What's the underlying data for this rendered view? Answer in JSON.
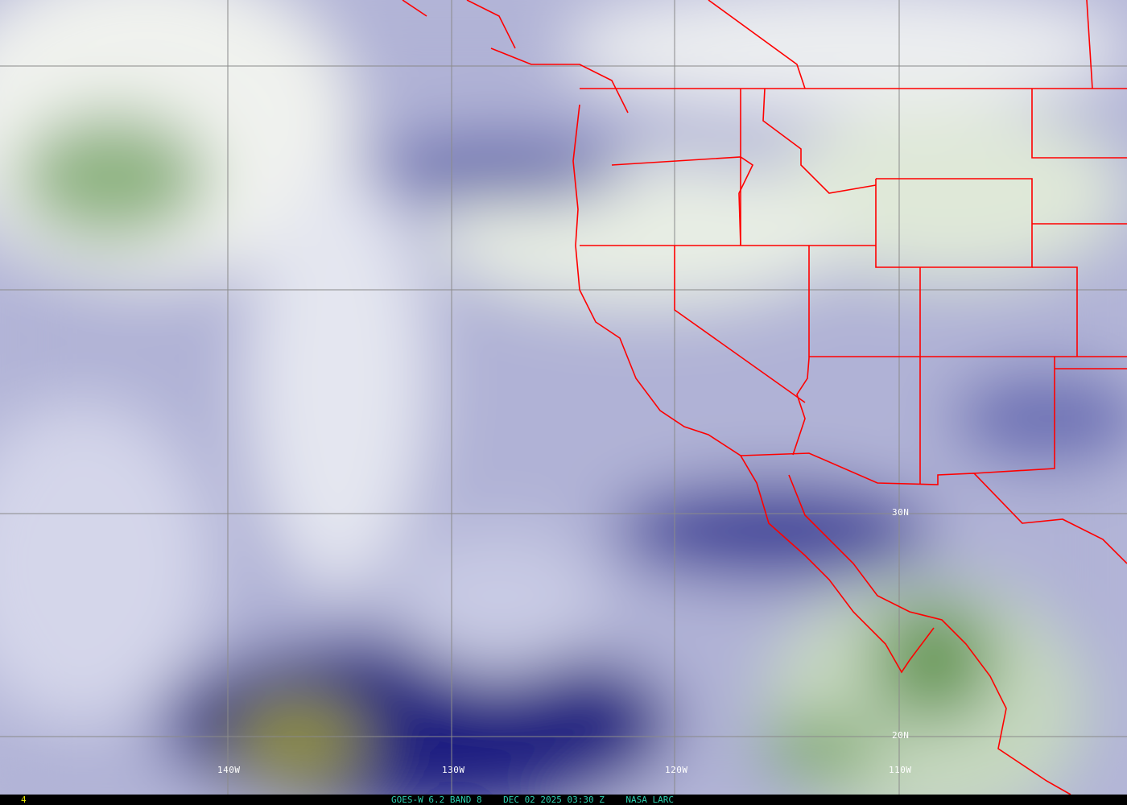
{
  "image": {
    "satellite": "GOES-W",
    "product": "6.2 BAND 8",
    "caption": "GOES-W 6.2 BAND 8    DEC 02 2025 03:30 Z    NASA LARC",
    "frame_number": "4",
    "longitude_labels": [
      "140W",
      "130W",
      "120W",
      "110W"
    ],
    "latitude_labels": [
      "30N",
      "20N"
    ],
    "colors": {
      "dry": "#1a1a78",
      "moderate": "#a8aad4",
      "moist": "#f4f6f4",
      "very_moist": "#4a8a3a",
      "very_dry": "#9a9a3a",
      "borders": "#ff0000",
      "grid": "#8a8a8a",
      "caption_text": "#2bd0b0"
    }
  }
}
